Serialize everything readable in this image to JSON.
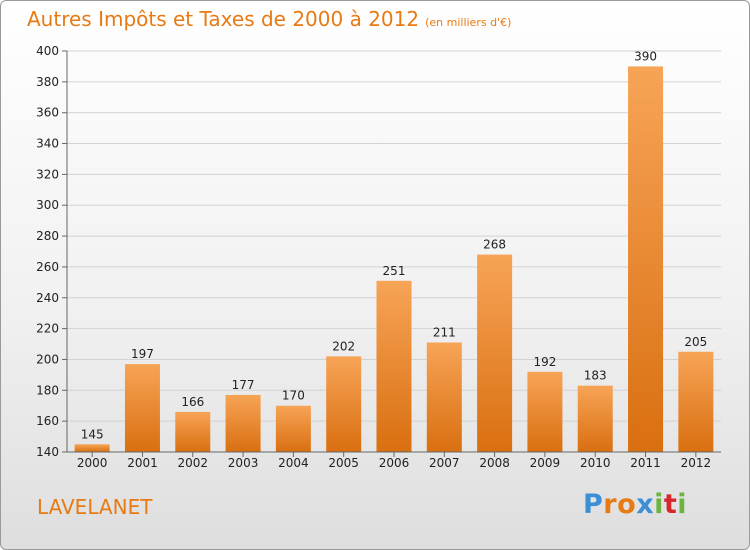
{
  "title": "Autres Impôts et Taxes de 2000 à 2012",
  "unit": "(en milliers d'€)",
  "town": "LAVELANET",
  "logo": {
    "letters": [
      "P",
      "r",
      "o",
      "x",
      "i",
      "t",
      "i"
    ],
    "colors": [
      "#3b8fd6",
      "#e87a14",
      "#e87a14",
      "#3b8fd6",
      "#6cb33f",
      "#d7262c",
      "#6cb33f"
    ]
  },
  "colors": {
    "accent": "#e87a14",
    "bar_top": "#f7a457",
    "bar_bottom": "#d96f10"
  },
  "chart_data": {
    "type": "bar",
    "title": "Autres Impôts et Taxes de 2000 à 2012",
    "subtitle": "(en milliers d'€)",
    "xlabel": "",
    "ylabel": "",
    "categories": [
      "2000",
      "2001",
      "2002",
      "2003",
      "2004",
      "2005",
      "2006",
      "2007",
      "2008",
      "2009",
      "2010",
      "2011",
      "2012"
    ],
    "values": [
      145,
      197,
      166,
      177,
      170,
      202,
      251,
      211,
      268,
      192,
      183,
      390,
      205
    ],
    "ylim": [
      140,
      400
    ],
    "yticks": [
      140,
      160,
      180,
      200,
      220,
      240,
      260,
      280,
      300,
      320,
      340,
      360,
      380,
      400
    ],
    "grid": true,
    "legend": "none"
  }
}
